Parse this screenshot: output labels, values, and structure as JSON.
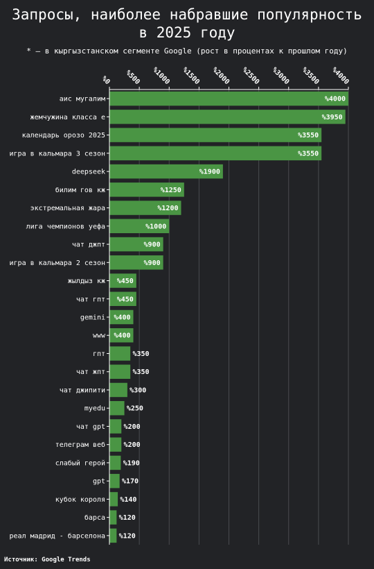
{
  "colors": {
    "background": "#222326",
    "bar": "#4a9544",
    "grid": "#4a4b4f",
    "text": "#ffffff"
  },
  "title": "Запросы, наиболее набравшие популярность\nв 2025 году",
  "subtitle": "* — в кыргызстанском сегменте Google (рост в процентах к прошлом году)",
  "source": "Источник: Google Trends",
  "chart_data": {
    "type": "bar",
    "orientation": "horizontal",
    "title": "Запросы, наиболее набравшие популярность в 2025 году",
    "subtitle": "* — в кыргызстанском сегменте Google (рост в процентах к прошлом году)",
    "xlim": [
      0,
      4000
    ],
    "x_ticks": [
      0,
      500,
      1000,
      1500,
      2000,
      2500,
      3000,
      3500,
      4000
    ],
    "x_tick_labels": [
      "%0",
      "%500",
      "%1000",
      "%1500",
      "%2000",
      "%2500",
      "%3000",
      "%3500",
      "%4000"
    ],
    "x_axis_position": "top",
    "grid": true,
    "categories": [
      "аис мугалим",
      "жемчужина класса е",
      "календарь орозо 2025",
      "игра в кальмара 3 сезон",
      "deepseek",
      "билим гов кж",
      "экстремальная жара",
      "лига чемпионов уефа",
      "чат джпт",
      "игра в кальмара 2 сезон",
      "жылдыз кж",
      "чат гпт",
      "gemini",
      "www",
      "гпт",
      "чат жпт",
      "чат джипити",
      "myedu",
      "чат gpt",
      "телеграм веб",
      "слабый герой",
      "gpt",
      "кубок короля",
      "барса",
      "реал мадрид - барселона"
    ],
    "values": [
      4000,
      3950,
      3550,
      3550,
      1900,
      1250,
      1200,
      1000,
      900,
      900,
      450,
      450,
      400,
      400,
      350,
      350,
      300,
      250,
      200,
      200,
      190,
      170,
      140,
      120,
      120
    ],
    "value_labels": [
      "%4000",
      "%3950",
      "%3550",
      "%3550",
      "%1900",
      "%1250",
      "%1200",
      "%1000",
      "%900",
      "%900",
      "%450",
      "%450",
      "%400",
      "%400",
      "%350",
      "%350",
      "%300",
      "%250",
      "%200",
      "%200",
      "%190",
      "%170",
      "%140",
      "%120",
      "%120"
    ]
  }
}
